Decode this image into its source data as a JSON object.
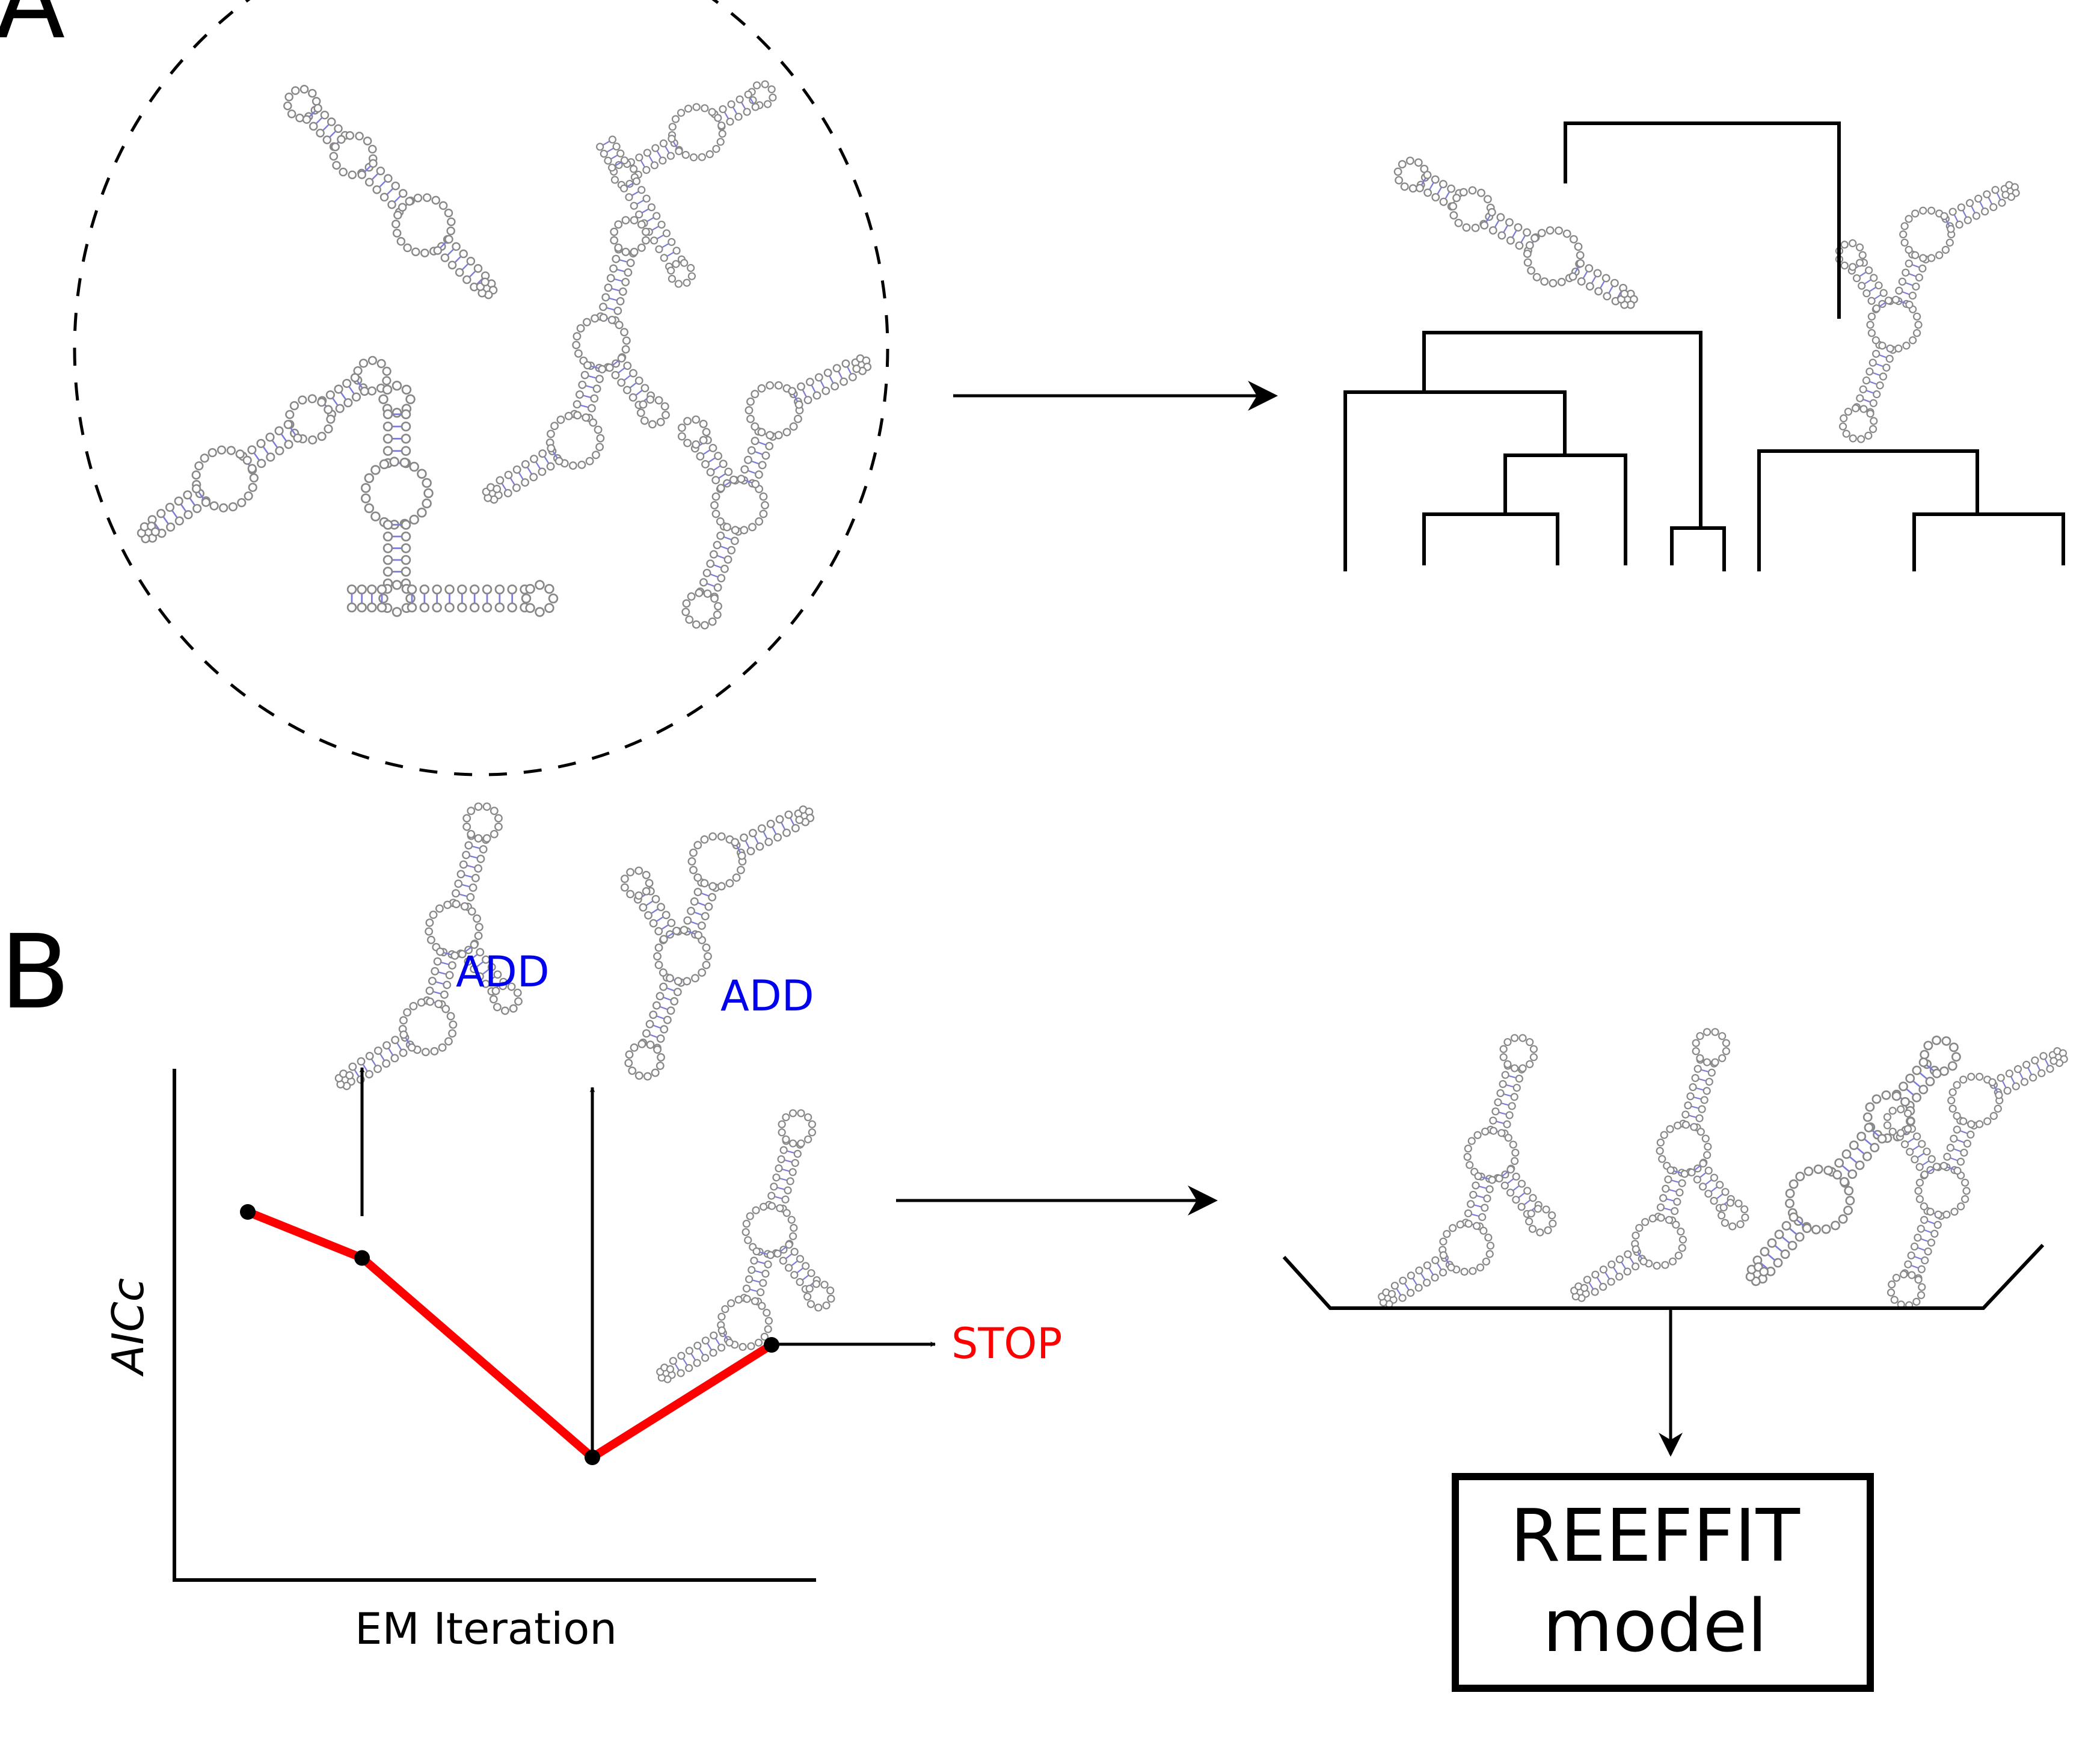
{
  "panels": {
    "a": {
      "label": "A"
    },
    "b": {
      "label": "B",
      "add_label_1": "ADD",
      "add_label_2": "ADD",
      "stop_label": "STOP",
      "x_axis_label": "EM Iteration",
      "y_axis_label": "AICc"
    }
  },
  "model_box": {
    "line1": "REEFFIT",
    "line2": "model"
  },
  "colors": {
    "ink": "#000000",
    "curve": "#ff0000",
    "add_text": "#0000ee",
    "stop_text": "#ff0000",
    "nucleotide": "#888888",
    "base_pair": "#7b7bdc"
  },
  "aicc_curve": {
    "points": [
      {
        "iteration": 1,
        "aicc": 0.72
      },
      {
        "iteration": 2,
        "aicc": 0.63
      },
      {
        "iteration": 3,
        "aicc": 0.24
      },
      {
        "iteration": 4,
        "aicc": 0.46
      }
    ]
  },
  "icons": [
    "rna-secondary-structure-icon",
    "dendrogram-icon",
    "arrow-icon"
  ]
}
